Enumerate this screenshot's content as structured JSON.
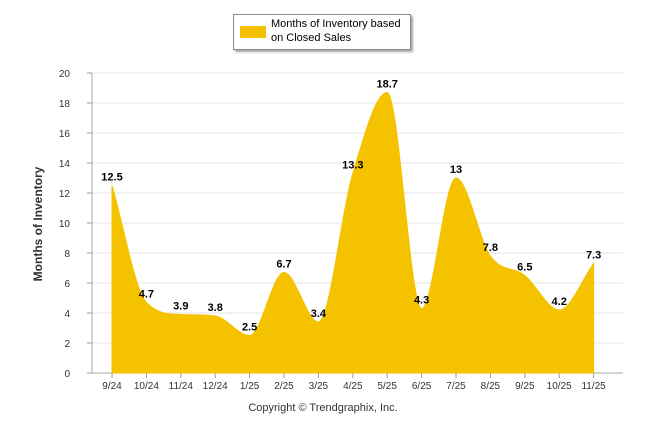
{
  "chart_data": {
    "type": "area",
    "categories": [
      "9/24",
      "10/24",
      "11/24",
      "12/24",
      "1/25",
      "2/25",
      "3/25",
      "4/25",
      "5/25",
      "6/25",
      "7/25",
      "8/25",
      "9/25",
      "10/25",
      "11/25"
    ],
    "series": [
      {
        "name": "Months of Inventory based on Closed Sales",
        "values": [
          12.5,
          4.7,
          3.9,
          3.8,
          2.5,
          6.7,
          3.4,
          13.3,
          18.7,
          4.3,
          13,
          7.8,
          6.5,
          4.2,
          7.3
        ],
        "labels": [
          "12.5",
          "4.7",
          "3.9",
          "3.8",
          "2.5",
          "6.7",
          "3.4",
          "13.3",
          "18.7",
          "4.3",
          "13",
          "7.8",
          "6.5",
          "4.2",
          "7.3"
        ],
        "color": "#F5C200"
      }
    ],
    "ylabel": "Months of Inventory",
    "xlabel": "",
    "ylim": [
      0,
      20
    ],
    "yticks": [
      "0",
      "2",
      "4",
      "6",
      "8",
      "10",
      "12",
      "14",
      "16",
      "18",
      "20"
    ],
    "grid": true,
    "legend_position": "top-center"
  },
  "legend": {
    "label": "Months of Inventory based on Closed Sales",
    "color": "#F5C200"
  },
  "footer": {
    "copyright": "Copyright © Trendgraphix, Inc."
  }
}
